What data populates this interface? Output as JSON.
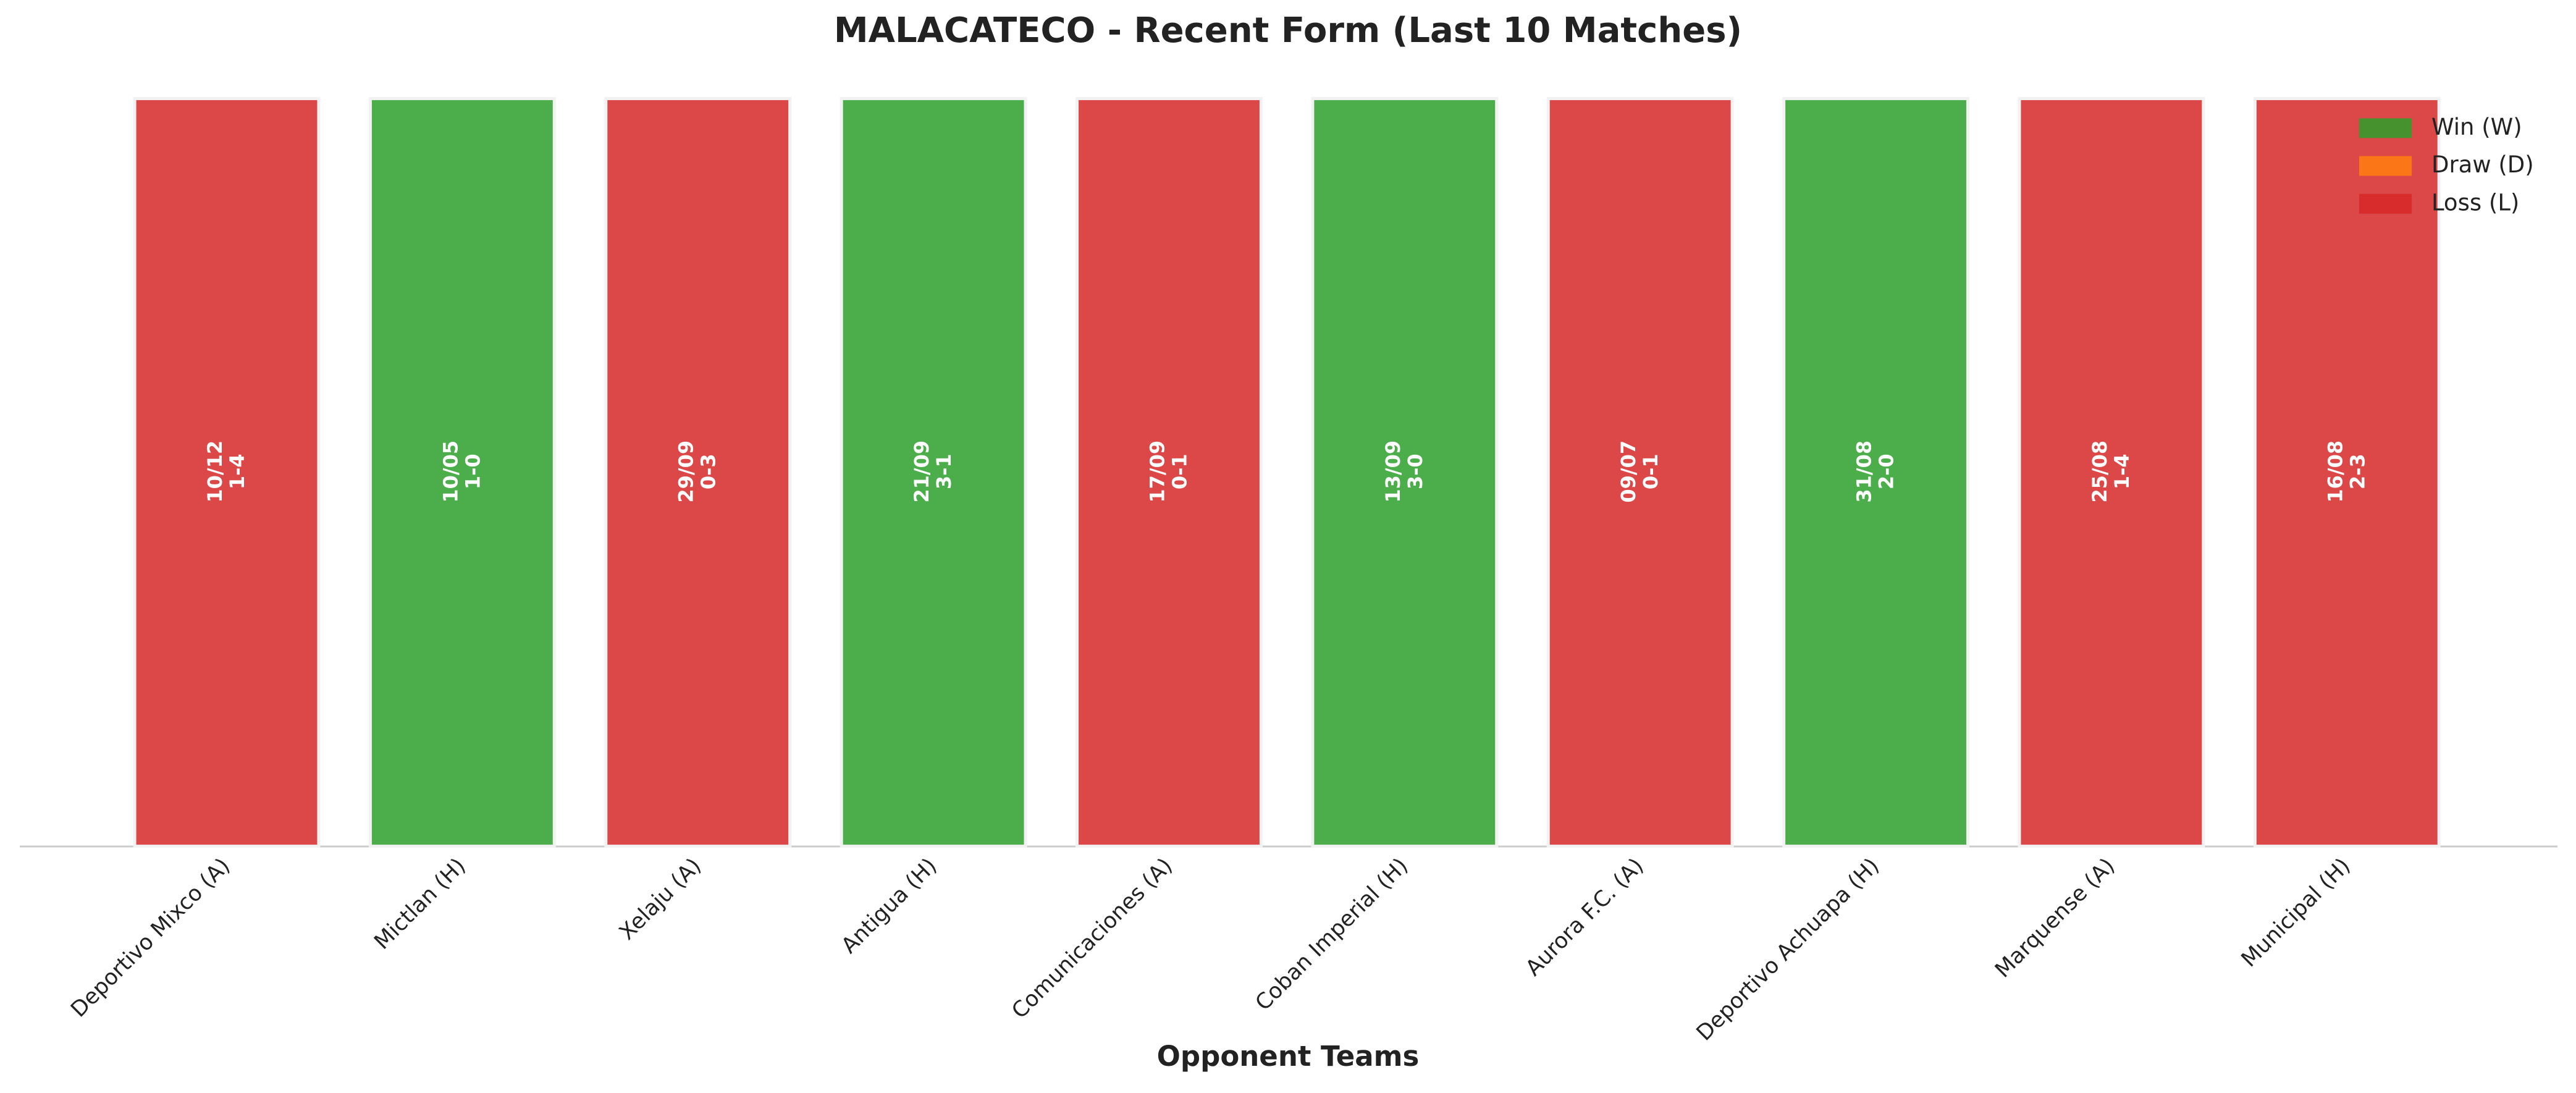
{
  "chart_data": {
    "type": "bar",
    "title": "MALACATECO - Recent Form (Last 10 Matches)",
    "xlabel": "Opponent Teams",
    "categories": [
      "Deportivo Mixco (A)",
      "Mictlan (H)",
      "Xelaju (A)",
      "Antigua (H)",
      "Comunicaciones (A)",
      "Coban Imperial (H)",
      "Aurora F.C. (A)",
      "Deportivo Achuapa (H)",
      "Marquense (A)",
      "Municipal (H)"
    ],
    "dates": [
      "10/12",
      "10/05",
      "29/09",
      "21/09",
      "17/09",
      "13/09",
      "09/07",
      "31/08",
      "25/08",
      "16/08"
    ],
    "scores": [
      "1-4",
      "1-0",
      "0-3",
      "3-1",
      "0-1",
      "3-0",
      "0-1",
      "2-0",
      "1-4",
      "2-3"
    ],
    "series": [
      {
        "name": "Win (W)",
        "color": "#2ca02c",
        "values": [
          null,
          1,
          null,
          1,
          null,
          1,
          null,
          1,
          null,
          null
        ]
      },
      {
        "name": "Draw (D)",
        "color": "#ff7f0e",
        "values": [
          null,
          null,
          null,
          null,
          null,
          null,
          null,
          null,
          null,
          null
        ]
      },
      {
        "name": "Loss (L)",
        "color": "#d62728",
        "values": [
          1,
          null,
          1,
          null,
          1,
          null,
          1,
          null,
          1,
          1
        ]
      }
    ],
    "ylim": [
      0,
      1
    ],
    "legend_position": "upper right"
  }
}
